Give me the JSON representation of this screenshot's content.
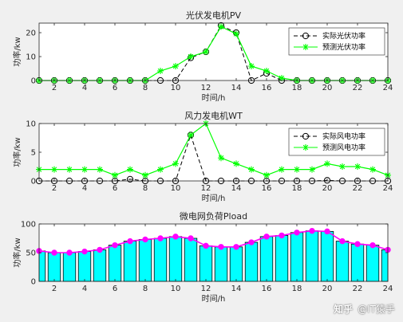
{
  "colors": {
    "figure_bg": "#f0f0f0",
    "axes_bg": "#ffffff",
    "actual_line": "#000000",
    "predicted_line": "#00ff00",
    "bar_fill": "#00ffff",
    "bar_edge": "#000000",
    "load_line": "#ff00ff"
  },
  "watermark": {
    "brand": "知乎",
    "handle": "@IT猿手"
  },
  "chart_data": [
    {
      "type": "line",
      "title": "光伏发电机PV",
      "xlabel": "时间/h",
      "ylabel": "功率/kw",
      "xlim": [
        1,
        24
      ],
      "ylim": [
        0,
        24
      ],
      "xticks": [
        2,
        4,
        6,
        8,
        10,
        12,
        14,
        16,
        18,
        20,
        22,
        24
      ],
      "yticks": [
        0,
        10,
        20
      ],
      "legend_position": "top-right",
      "x": [
        1,
        2,
        3,
        4,
        5,
        6,
        7,
        8,
        9,
        10,
        11,
        12,
        13,
        14,
        15,
        16,
        17,
        18,
        19,
        20,
        21,
        22,
        23,
        24
      ],
      "series": [
        {
          "name": "实际光伏功率",
          "style": "dashed-black-circle",
          "values": [
            0,
            0,
            0,
            0,
            0,
            0,
            0,
            0,
            0,
            0,
            9.5,
            12,
            23,
            20,
            0,
            3,
            0,
            0,
            0,
            0,
            0,
            0,
            0,
            0
          ]
        },
        {
          "name": "预测光伏功率",
          "style": "solid-green-star",
          "values": [
            0,
            0,
            0,
            0,
            0,
            0,
            0,
            0,
            4,
            6,
            10,
            12,
            22.5,
            19.5,
            6,
            4,
            1,
            0,
            0,
            0,
            0,
            0,
            0,
            0
          ]
        }
      ]
    },
    {
      "type": "line",
      "title": "风力发电机WT",
      "xlabel": "时间/h",
      "ylabel": "功率/kw",
      "xlim": [
        1,
        24
      ],
      "ylim": [
        0,
        10
      ],
      "xticks": [
        2,
        4,
        6,
        8,
        10,
        12,
        14,
        16,
        18,
        20,
        22,
        24
      ],
      "yticks": [
        0,
        5,
        10
      ],
      "legend_position": "top-right",
      "x": [
        1,
        2,
        3,
        4,
        5,
        6,
        7,
        8,
        9,
        10,
        11,
        12,
        13,
        14,
        15,
        16,
        17,
        18,
        19,
        20,
        21,
        22,
        23,
        24
      ],
      "series": [
        {
          "name": "实际风电功率",
          "style": "dashed-black-circle",
          "values": [
            0,
            0,
            0,
            0,
            0,
            0,
            0.3,
            0,
            0,
            0,
            8,
            0,
            0,
            0,
            0,
            0,
            0,
            0,
            0,
            0.1,
            0,
            0,
            0,
            0
          ]
        },
        {
          "name": "预测风电功率",
          "style": "solid-green-star",
          "values": [
            2,
            2,
            2,
            2,
            2,
            1,
            2,
            1,
            2,
            3,
            8,
            10,
            4,
            3,
            2,
            1,
            2,
            2,
            2,
            3,
            2.5,
            2.5,
            2,
            1
          ]
        }
      ]
    },
    {
      "type": "bar",
      "title": "微电网负荷Pload",
      "xlabel": "时间/h",
      "ylabel": "功率/kw",
      "xlim": [
        1,
        24
      ],
      "ylim": [
        0,
        100
      ],
      "xticks": [
        2,
        4,
        6,
        8,
        10,
        12,
        14,
        16,
        18,
        20,
        22,
        24
      ],
      "yticks": [
        0,
        50,
        100
      ],
      "x": [
        1,
        2,
        3,
        4,
        5,
        6,
        7,
        8,
        9,
        10,
        11,
        12,
        13,
        14,
        15,
        16,
        17,
        18,
        19,
        20,
        21,
        22,
        23,
        24
      ],
      "values": [
        53,
        50,
        50,
        52,
        55,
        63,
        70,
        73,
        75,
        78,
        75,
        62,
        60,
        60,
        68,
        78,
        80,
        85,
        88,
        87,
        70,
        65,
        63,
        55
      ]
    }
  ]
}
